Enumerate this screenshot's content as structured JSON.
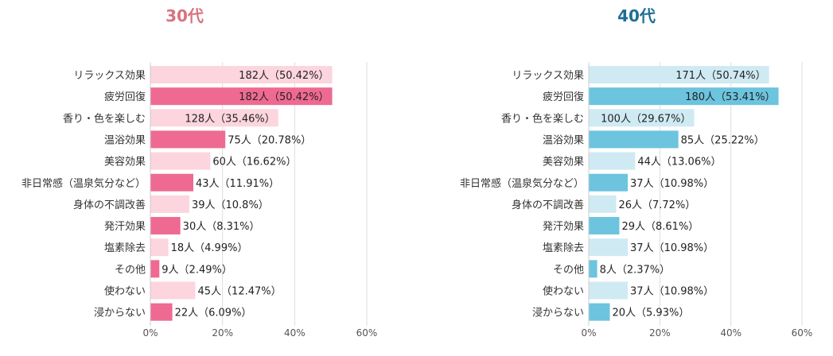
{
  "colors": {
    "c30_dark": "#ef6a92",
    "c30_light": "#fcd5df",
    "c40_dark": "#6cc4de",
    "c40_light": "#cfeaf3",
    "title30": "#d9737f",
    "title40": "#1f6e95"
  },
  "chart_data": [
    {
      "type": "bar",
      "orientation": "horizontal",
      "title": "30代",
      "categories": [
        "リラックス効果",
        "疲労回復",
        "香り・色を楽しむ",
        "温浴効果",
        "美容効果",
        "非日常感（温泉気分など）",
        "身体の不調改善",
        "発汗効果",
        "塩素除去",
        "その他",
        "使わない",
        "浸からない"
      ],
      "values": [
        50.42,
        50.42,
        35.46,
        20.78,
        16.62,
        11.91,
        10.8,
        8.31,
        4.99,
        2.49,
        12.47,
        6.09
      ],
      "labels": [
        "182人（50.42%）",
        "182人（50.42%）",
        "128人（35.46%）",
        "75人（20.78%）",
        "60人（16.62%）",
        "43人（11.91%）",
        "39人（10.8%）",
        "30人（8.31%）",
        "18人（4.99%）",
        "9人（2.49%）",
        "45人（12.47%）",
        "22人（6.09%）"
      ],
      "highlight": [
        false,
        true,
        false,
        true,
        false,
        true,
        false,
        true,
        false,
        true,
        false,
        true
      ],
      "xlim": [
        0,
        60
      ],
      "ticks": [
        "0%",
        "20%",
        "40%",
        "60%"
      ],
      "tick_values": [
        0,
        20,
        40,
        60
      ],
      "grid": true
    },
    {
      "type": "bar",
      "orientation": "horizontal",
      "title": "40代",
      "categories": [
        "リラックス効果",
        "疲労回復",
        "香り・色を楽しむ",
        "温浴効果",
        "美容効果",
        "非日常感（温泉気分など）",
        "身体の不調改善",
        "発汗効果",
        "塩素除去",
        "その他",
        "使わない",
        "浸からない"
      ],
      "values": [
        50.74,
        53.41,
        29.67,
        25.22,
        13.06,
        10.98,
        7.72,
        8.61,
        10.98,
        2.37,
        10.98,
        5.93
      ],
      "labels": [
        "171人（50.74%）",
        "180人（53.41%）",
        "100人（29.67%）",
        "85人（25.22%）",
        "44人（13.06%）",
        "37人（10.98%）",
        "26人（7.72%）",
        "29人（8.61%）",
        "37人（10.98%）",
        "8人（2.37%）",
        "37人（10.98%）",
        "20人（5.93%）"
      ],
      "highlight": [
        false,
        true,
        false,
        true,
        false,
        true,
        false,
        true,
        false,
        true,
        false,
        true
      ],
      "xlim": [
        0,
        60
      ],
      "ticks": [
        "0%",
        "20%",
        "40%",
        "60%"
      ],
      "tick_values": [
        0,
        20,
        40,
        60
      ],
      "grid": true
    }
  ]
}
